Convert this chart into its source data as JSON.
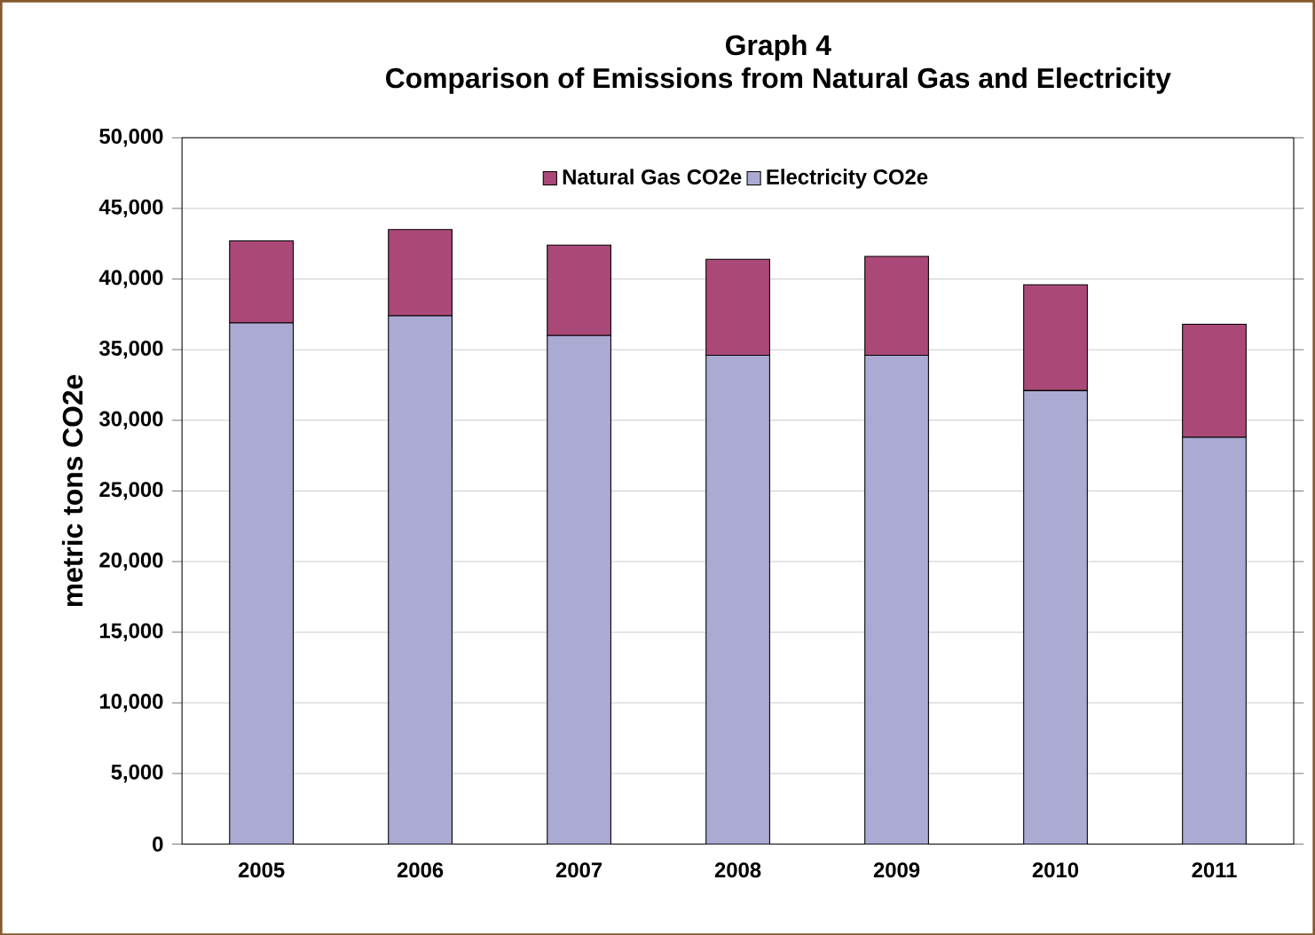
{
  "chart_data": {
    "type": "bar",
    "stacked": true,
    "title": "Graph 4",
    "subtitle": "Comparison of Emissions from Natural Gas and Electricity",
    "ylabel": "metric tons CO2e",
    "categories": [
      "2005",
      "2006",
      "2007",
      "2008",
      "2009",
      "2010",
      "2011"
    ],
    "series": [
      {
        "name": "Electricity CO2e",
        "color": "#aaaad2",
        "values": [
          36900,
          37400,
          36000,
          34600,
          34600,
          32100,
          28800
        ]
      },
      {
        "name": "Natural Gas CO2e",
        "color": "#aa4977",
        "values": [
          5800,
          6100,
          6400,
          6800,
          7000,
          7500,
          8000
        ]
      }
    ],
    "ylim": [
      0,
      50000
    ],
    "yticks": [
      {
        "value": 0,
        "label": "0"
      },
      {
        "value": 5000,
        "label": "5,000"
      },
      {
        "value": 10000,
        "label": "10,000"
      },
      {
        "value": 15000,
        "label": "15,000"
      },
      {
        "value": 20000,
        "label": "20,000"
      },
      {
        "value": 25000,
        "label": "25,000"
      },
      {
        "value": 30000,
        "label": "30,000"
      },
      {
        "value": 35000,
        "label": "35,000"
      },
      {
        "value": 40000,
        "label": "40,000"
      },
      {
        "value": 45000,
        "label": "45,000"
      },
      {
        "value": 50000,
        "label": "50,000"
      }
    ],
    "grid": "y",
    "legend": "top"
  }
}
